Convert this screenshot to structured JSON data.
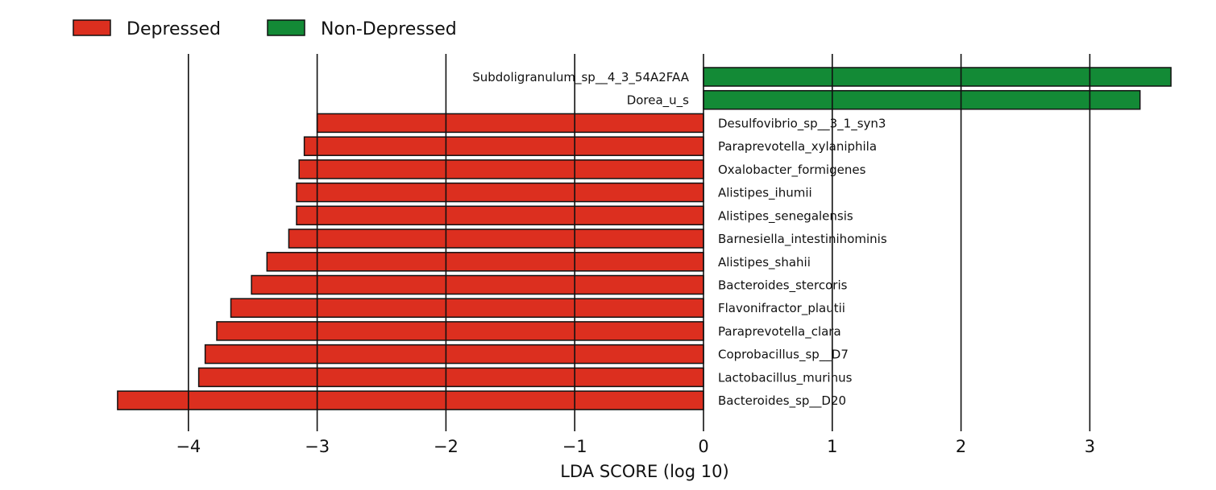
{
  "chart_data": {
    "type": "bar",
    "orientation": "horizontal",
    "xlabel": "LDA SCORE (log 10)",
    "xlim": [
      -4.6,
      3.8
    ],
    "xticks": [
      -4,
      -3,
      -2,
      -1,
      0,
      1,
      2,
      3
    ],
    "xtick_labels": [
      "−4",
      "−3",
      "−2",
      "−1",
      "0",
      "1",
      "2",
      "3"
    ],
    "grid": "vertical",
    "legend": {
      "position": "top-left",
      "entries": [
        {
          "label": "Depressed",
          "color": "#dc2f1f"
        },
        {
          "label": "Non-Depressed",
          "color": "#138a36"
        }
      ]
    },
    "series": [
      {
        "name": "Depressed",
        "color": "#dc2f1f"
      },
      {
        "name": "Non-Depressed",
        "color": "#138a36"
      }
    ],
    "categories": [
      "Subdoligranulum_sp__4_3_54A2FAA",
      "Dorea_u_s",
      "Desulfovibrio_sp__3_1_syn3",
      "Paraprevotella_xylaniphila",
      "Oxalobacter_formigenes",
      "Alistipes_ihumii",
      "Alistipes_senegalensis",
      "Barnesiella_intestinihominis",
      "Alistipes_shahii",
      "Bacteroides_stercoris",
      "Flavonifractor_plautii",
      "Paraprevotella_clara",
      "Coprobacillus_sp__D7",
      "Lactobacillus_murinus",
      "Bacteroides_sp__D20"
    ],
    "values": [
      3.63,
      3.39,
      -3.0,
      -3.1,
      -3.14,
      -3.16,
      -3.16,
      -3.22,
      -3.39,
      -3.51,
      -3.67,
      -3.78,
      -3.87,
      -3.92,
      -4.55
    ],
    "groups": [
      "Non-Depressed",
      "Non-Depressed",
      "Depressed",
      "Depressed",
      "Depressed",
      "Depressed",
      "Depressed",
      "Depressed",
      "Depressed",
      "Depressed",
      "Depressed",
      "Depressed",
      "Depressed",
      "Depressed",
      "Depressed"
    ]
  }
}
